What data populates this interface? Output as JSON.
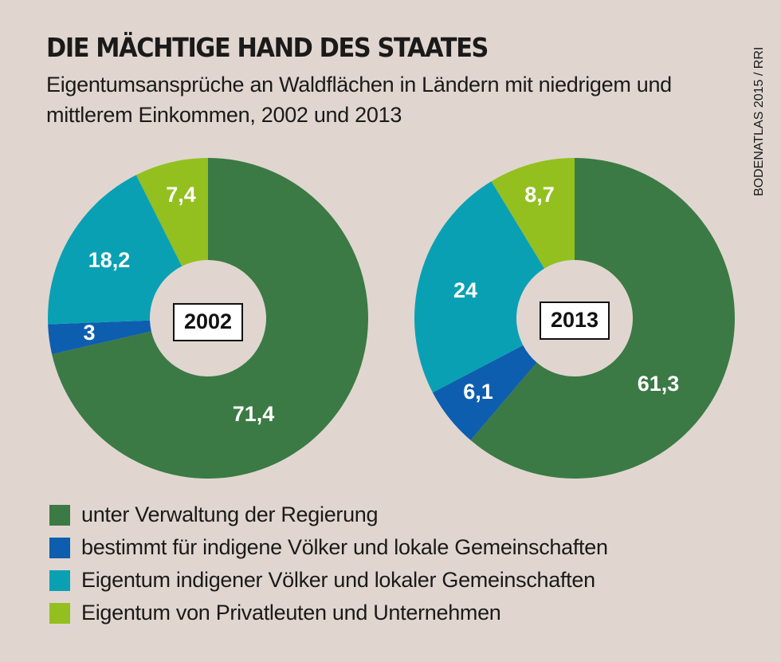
{
  "title": "DIE MÄCHTIGE HAND DES STAATES",
  "subtitle": "Eigentumsansprüche an Waldflächen in Ländern mit niedrigem und mittlerem Einkommen, 2002 und 2013",
  "source": "BODENATLAS 2015 / RRI",
  "colors": {
    "regierung": "#3b7a44",
    "bestimmt": "#0e5eb0",
    "eigentum_indigen": "#0aa0b4",
    "privat": "#93c01f",
    "background": "#e0d6cf"
  },
  "legend": [
    {
      "label": "unter Verwaltung der Regierung",
      "color": "#3b7a44"
    },
    {
      "label": "bestimmt für indigene Völker und lokale Gemeinschaften",
      "color": "#0e5eb0"
    },
    {
      "label": "Eigentum indigener Völker und lokaler Gemeinschaften",
      "color": "#0aa0b4"
    },
    {
      "label": "Eigentum von Privatleuten und Unternehmen",
      "color": "#93c01f"
    }
  ],
  "chart_data": [
    {
      "type": "pie",
      "center_label": "2002",
      "categories": [
        "unter Verwaltung der Regierung",
        "bestimmt für indigene Völker und lokale Gemeinschaften",
        "Eigentum indigener Völker und lokaler Gemeinschaften",
        "Eigentum von Privatleuten und Unternehmen"
      ],
      "values": [
        71.4,
        3,
        18.2,
        7.4
      ],
      "labels": [
        "71,4",
        "3",
        "18,2",
        "7,4"
      ]
    },
    {
      "type": "pie",
      "center_label": "2013",
      "categories": [
        "unter Verwaltung der Regierung",
        "bestimmt für indigene Völker und lokale Gemeinschaften",
        "Eigentum indigener Völker und lokaler Gemeinschaften",
        "Eigentum von Privatleuten und Unternehmen"
      ],
      "values": [
        61.3,
        6.1,
        24,
        8.7
      ],
      "labels": [
        "61,3",
        "6,1",
        "24",
        "8,7"
      ]
    }
  ]
}
